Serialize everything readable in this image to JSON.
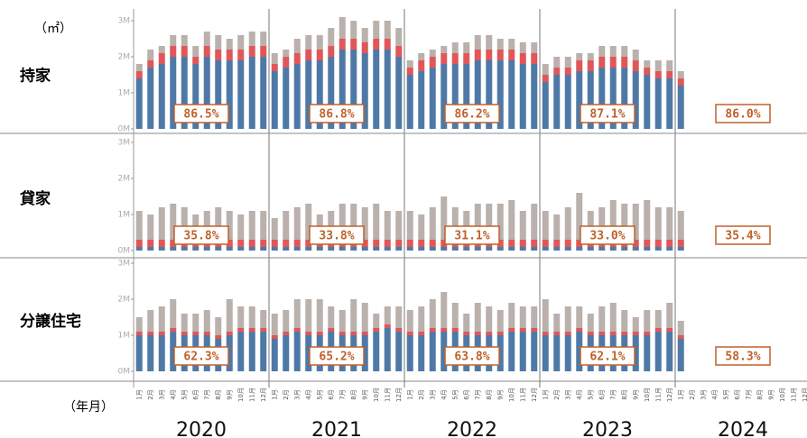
{
  "unit_label": "（㎡）",
  "x_axis_label": "（年月）",
  "years": [
    "2020",
    "2021",
    "2022",
    "2023",
    "2024"
  ],
  "months": [
    "1月",
    "2月",
    "3月",
    "4月",
    "5月",
    "6月",
    "7月",
    "8月",
    "9月",
    "10月",
    "11月",
    "12月",
    "1月",
    "2月",
    "3月",
    "4月",
    "5月",
    "6月",
    "7月",
    "8月",
    "9月",
    "10月",
    "11月",
    "12月",
    "1月",
    "2月",
    "3月",
    "4月",
    "5月",
    "6月",
    "7月",
    "8月",
    "9月",
    "10月",
    "11月",
    "12月",
    "1月",
    "2月",
    "3月",
    "4月",
    "5月",
    "6月",
    "7月",
    "8月",
    "9月",
    "10月",
    "11月",
    "12月",
    "1月",
    "2月",
    "3月",
    "4月",
    "5月",
    "6月",
    "7月",
    "8月",
    "9月",
    "10月",
    "11月",
    "12月"
  ],
  "chart_data": [
    {
      "type": "bar",
      "stacked": true,
      "title": "持家",
      "ylim": [
        0,
        3
      ],
      "yticks": [
        {
          "value": 0,
          "label": "0M"
        },
        {
          "value": 1,
          "label": "1M"
        },
        {
          "value": 2,
          "label": "2M"
        },
        {
          "value": 3,
          "label": "3M"
        }
      ],
      "series": [
        {
          "color": "#4e79a7",
          "values": [
            1.4,
            1.7,
            1.8,
            2.0,
            2.0,
            1.8,
            2.0,
            1.9,
            1.9,
            1.9,
            2.0,
            2.0,
            1.6,
            1.7,
            1.8,
            1.9,
            1.9,
            2.0,
            2.2,
            2.2,
            2.1,
            2.2,
            2.2,
            2.0,
            1.5,
            1.6,
            1.7,
            1.8,
            1.8,
            1.8,
            1.9,
            1.9,
            1.9,
            1.9,
            1.8,
            1.8,
            1.3,
            1.5,
            1.5,
            1.6,
            1.6,
            1.7,
            1.7,
            1.7,
            1.6,
            1.5,
            1.4,
            1.4,
            1.2,
            null,
            null,
            null,
            null,
            null,
            null,
            null,
            null,
            null,
            null,
            null
          ]
        },
        {
          "color": "#e15759",
          "values": [
            0.2,
            0.2,
            0.3,
            0.3,
            0.3,
            0.2,
            0.3,
            0.3,
            0.3,
            0.3,
            0.3,
            0.3,
            0.2,
            0.3,
            0.3,
            0.3,
            0.3,
            0.3,
            0.3,
            0.3,
            0.3,
            0.3,
            0.3,
            0.3,
            0.2,
            0.3,
            0.3,
            0.3,
            0.3,
            0.3,
            0.3,
            0.3,
            0.3,
            0.3,
            0.3,
            0.3,
            0.2,
            0.2,
            0.2,
            0.3,
            0.3,
            0.3,
            0.3,
            0.3,
            0.3,
            0.2,
            0.2,
            0.2,
            0.2,
            null,
            null,
            null,
            null,
            null,
            null,
            null,
            null,
            null,
            null,
            null
          ]
        },
        {
          "color": "#bab0ac",
          "values": [
            0.2,
            0.3,
            0.2,
            0.3,
            0.3,
            0.3,
            0.4,
            0.4,
            0.3,
            0.4,
            0.4,
            0.4,
            0.3,
            0.2,
            0.4,
            0.4,
            0.4,
            0.5,
            0.6,
            0.5,
            0.4,
            0.5,
            0.5,
            0.5,
            0.2,
            0.2,
            0.2,
            0.2,
            0.3,
            0.3,
            0.4,
            0.4,
            0.3,
            0.3,
            0.3,
            0.3,
            0.3,
            0.3,
            0.3,
            0.2,
            0.2,
            0.3,
            0.3,
            0.3,
            0.3,
            0.2,
            0.3,
            0.3,
            0.2,
            null,
            null,
            null,
            null,
            null,
            null,
            null,
            null,
            null,
            null,
            null
          ]
        }
      ],
      "shares": [
        86.5,
        86.8,
        86.2,
        87.1,
        86.0
      ],
      "share_labels": [
        "86.5%",
        "86.8%",
        "86.2%",
        "87.1%",
        "86.0%"
      ]
    },
    {
      "type": "bar",
      "stacked": true,
      "title": "貸家",
      "ylim": [
        0,
        3
      ],
      "yticks": [
        {
          "value": 0,
          "label": "0M"
        },
        {
          "value": 1,
          "label": "1M"
        },
        {
          "value": 2,
          "label": "2M"
        },
        {
          "value": 3,
          "label": "3M"
        }
      ],
      "series": [
        {
          "color": "#4e79a7",
          "values": [
            0.1,
            0.1,
            0.1,
            0.1,
            0.1,
            0.1,
            0.1,
            0.1,
            0.1,
            0.1,
            0.1,
            0.1,
            0.1,
            0.1,
            0.1,
            0.1,
            0.1,
            0.1,
            0.1,
            0.1,
            0.1,
            0.1,
            0.1,
            0.1,
            0.1,
            0.1,
            0.1,
            0.1,
            0.1,
            0.1,
            0.1,
            0.1,
            0.1,
            0.1,
            0.1,
            0.1,
            0.1,
            0.1,
            0.1,
            0.1,
            0.1,
            0.1,
            0.1,
            0.1,
            0.1,
            0.1,
            0.1,
            0.1,
            0.1,
            null,
            null,
            null,
            null,
            null,
            null,
            null,
            null,
            null,
            null,
            null
          ]
        },
        {
          "color": "#e15759",
          "values": [
            0.2,
            0.2,
            0.2,
            0.2,
            0.2,
            0.2,
            0.2,
            0.2,
            0.2,
            0.2,
            0.2,
            0.2,
            0.2,
            0.2,
            0.2,
            0.2,
            0.2,
            0.2,
            0.2,
            0.2,
            0.2,
            0.2,
            0.2,
            0.2,
            0.2,
            0.2,
            0.2,
            0.2,
            0.2,
            0.2,
            0.2,
            0.2,
            0.2,
            0.2,
            0.2,
            0.2,
            0.2,
            0.2,
            0.2,
            0.2,
            0.2,
            0.2,
            0.2,
            0.2,
            0.2,
            0.2,
            0.2,
            0.2,
            0.2,
            null,
            null,
            null,
            null,
            null,
            null,
            null,
            null,
            null,
            null,
            null
          ]
        },
        {
          "color": "#bab0ac",
          "values": [
            0.8,
            0.7,
            0.9,
            1.0,
            0.9,
            0.7,
            0.8,
            0.9,
            0.8,
            0.7,
            0.8,
            0.8,
            0.6,
            0.8,
            0.9,
            1.0,
            0.7,
            0.8,
            1.0,
            1.0,
            0.9,
            1.0,
            0.8,
            0.8,
            0.8,
            0.7,
            0.9,
            1.2,
            0.9,
            0.8,
            1.0,
            1.0,
            1.0,
            1.1,
            0.8,
            1.0,
            0.8,
            0.7,
            0.9,
            1.3,
            0.8,
            0.9,
            1.1,
            1.0,
            1.0,
            1.1,
            0.9,
            0.9,
            0.8,
            null,
            null,
            null,
            null,
            null,
            null,
            null,
            null,
            null,
            null,
            null
          ]
        }
      ],
      "shares": [
        35.8,
        33.8,
        31.1,
        33.0,
        35.4
      ],
      "share_labels": [
        "35.8%",
        "33.8%",
        "31.1%",
        "33.0%",
        "35.4%"
      ]
    },
    {
      "type": "bar",
      "stacked": true,
      "title": "分譲住宅",
      "ylim": [
        0,
        3
      ],
      "yticks": [
        {
          "value": 0,
          "label": "0M"
        },
        {
          "value": 1,
          "label": "1M"
        },
        {
          "value": 2,
          "label": "2M"
        },
        {
          "value": 3,
          "label": "3M"
        }
      ],
      "series": [
        {
          "color": "#4e79a7",
          "values": [
            1.0,
            1.0,
            1.0,
            1.1,
            1.0,
            1.0,
            1.0,
            0.9,
            1.0,
            1.1,
            1.1,
            1.1,
            0.9,
            1.0,
            1.1,
            1.0,
            1.0,
            1.1,
            1.0,
            1.0,
            1.0,
            1.1,
            1.2,
            1.1,
            1.0,
            1.0,
            1.1,
            1.1,
            1.1,
            1.0,
            1.0,
            1.0,
            1.0,
            1.1,
            1.1,
            1.1,
            1.0,
            1.0,
            1.0,
            1.1,
            1.0,
            1.0,
            1.0,
            1.0,
            1.0,
            1.0,
            1.1,
            1.1,
            0.9,
            null,
            null,
            null,
            null,
            null,
            null,
            null,
            null,
            null,
            null,
            null
          ]
        },
        {
          "color": "#e15759",
          "values": [
            0.1,
            0.1,
            0.1,
            0.1,
            0.1,
            0.1,
            0.1,
            0.1,
            0.1,
            0.1,
            0.1,
            0.1,
            0.1,
            0.1,
            0.1,
            0.1,
            0.1,
            0.1,
            0.1,
            0.1,
            0.1,
            0.1,
            0.1,
            0.1,
            0.1,
            0.1,
            0.1,
            0.1,
            0.1,
            0.1,
            0.1,
            0.1,
            0.1,
            0.1,
            0.1,
            0.1,
            0.1,
            0.1,
            0.1,
            0.1,
            0.1,
            0.1,
            0.1,
            0.1,
            0.1,
            0.1,
            0.1,
            0.1,
            0.1,
            null,
            null,
            null,
            null,
            null,
            null,
            null,
            null,
            null,
            null,
            null
          ]
        },
        {
          "color": "#bab0ac",
          "values": [
            0.4,
            0.6,
            0.7,
            0.8,
            0.5,
            0.5,
            0.6,
            0.5,
            0.9,
            0.6,
            0.6,
            0.5,
            0.6,
            0.6,
            0.8,
            0.9,
            0.9,
            0.6,
            0.6,
            0.9,
            0.8,
            0.4,
            0.5,
            0.6,
            0.6,
            0.7,
            0.8,
            1.0,
            0.7,
            0.5,
            0.8,
            0.7,
            0.6,
            0.7,
            0.6,
            0.6,
            0.9,
            0.5,
            0.7,
            0.6,
            0.5,
            0.7,
            0.8,
            0.6,
            0.4,
            0.6,
            0.5,
            0.7,
            0.4,
            null,
            null,
            null,
            null,
            null,
            null,
            null,
            null,
            null,
            null,
            null
          ]
        }
      ],
      "shares": [
        62.3,
        65.2,
        63.8,
        62.1,
        58.3
      ],
      "share_labels": [
        "62.3%",
        "65.2%",
        "63.8%",
        "62.1%",
        "58.3%"
      ]
    }
  ]
}
